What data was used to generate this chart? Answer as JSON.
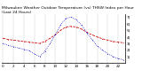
{
  "title": "Milwaukee Weather Outdoor Temperature (vs) THSW Index per Hour (Last 24 Hours)",
  "subtitle": "Last 24 Hours",
  "hours": [
    0,
    1,
    2,
    3,
    4,
    5,
    6,
    7,
    8,
    9,
    10,
    11,
    12,
    13,
    14,
    15,
    16,
    17,
    18,
    19,
    20,
    21,
    22,
    23
  ],
  "temp": [
    38,
    36,
    35,
    34,
    33,
    32,
    31,
    30,
    33,
    38,
    43,
    50,
    55,
    56,
    55,
    52,
    47,
    43,
    40,
    37,
    35,
    33,
    32,
    31
  ],
  "thsw": [
    30,
    27,
    25,
    23,
    21,
    19,
    14,
    10,
    18,
    30,
    44,
    58,
    68,
    70,
    66,
    58,
    46,
    36,
    26,
    20,
    14,
    10,
    7,
    5
  ],
  "temp_color": "#cc0000",
  "thsw_color": "#0000cc",
  "bg_color": "#ffffff",
  "grid_color": "#888888",
  "ylim": [
    0,
    75
  ],
  "ytick_vals": [
    10,
    20,
    30,
    40,
    50,
    60,
    70
  ],
  "ytick_labels": [
    "1|",
    "2|",
    "3|",
    "4|",
    "5|",
    "6|",
    "7|"
  ],
  "title_fontsize": 3.2,
  "tick_fontsize": 3.0,
  "ylabel_fontsize": 3.0
}
